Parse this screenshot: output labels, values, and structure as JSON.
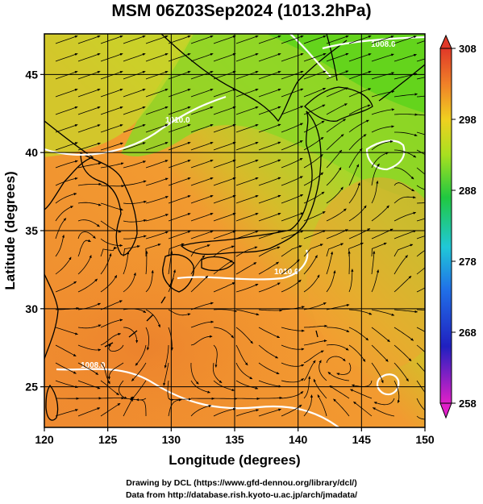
{
  "title": "MSM 06Z03Sep2024 (1013.2hPa)",
  "x_axis": {
    "label": "Longitude (degrees)",
    "ticks": [
      "120",
      "125",
      "130",
      "135",
      "140",
      "145",
      "150"
    ],
    "range": [
      120,
      150
    ]
  },
  "y_axis": {
    "label": "Latitude  (degrees)",
    "ticks": [
      "25",
      "30",
      "35",
      "40",
      "45"
    ],
    "range": [
      22.4,
      47.6
    ]
  },
  "colorbar": {
    "labels": [
      "308",
      "298",
      "288",
      "278",
      "268",
      "258"
    ],
    "range": [
      258,
      308
    ]
  },
  "contour_labels": [
    "1008.0",
    "1010.0",
    "1010.0",
    "1008.0"
  ],
  "credits": {
    "line1": "Drawing by DCL (https://www.gfd-dennou.org/library/dcl/)",
    "line2": "Data from http://database.rish.kyoto-u.ac.jp/arch/jmadata/"
  },
  "colors": {
    "warm": "#f08a2c",
    "mid": "#a8d62a",
    "cool": "#5fd21e",
    "contour": "#ffffff",
    "coast": "#000000"
  }
}
